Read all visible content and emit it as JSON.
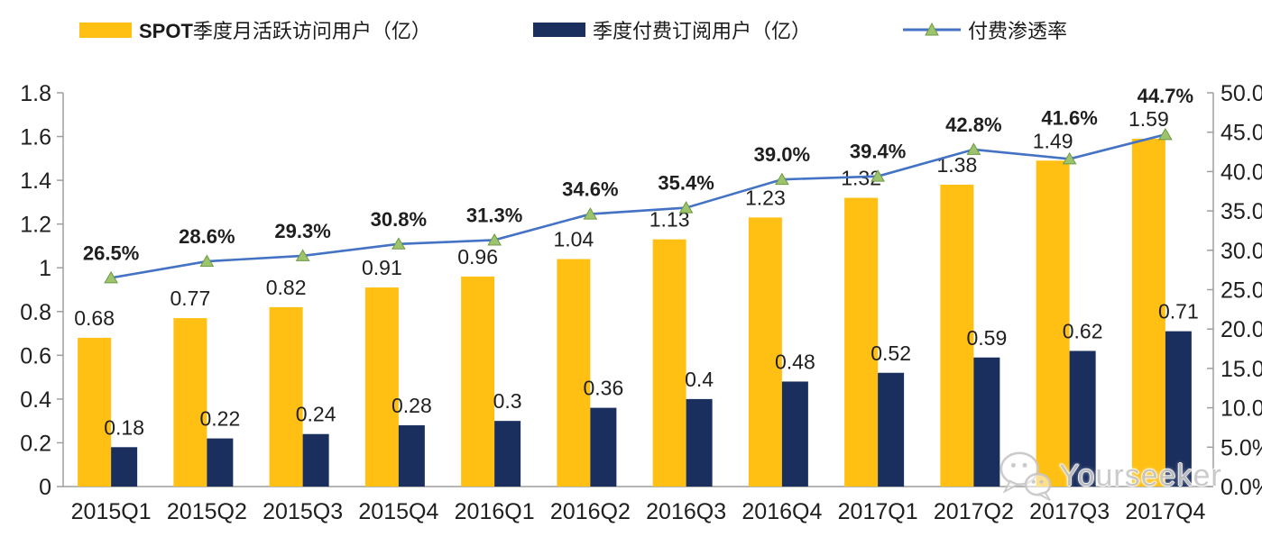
{
  "legend": {
    "items": [
      {
        "prefix": "SPOT",
        "label": "季度月活跃访问用户（亿）",
        "color": "#FFC013"
      },
      {
        "prefix": "",
        "label": "季度付费订阅用户（亿）",
        "color": "#1B2F5E"
      },
      {
        "prefix": "",
        "label": "付费渗透率",
        "color": "#4472C4",
        "marker_color": "#9DC36C"
      }
    ]
  },
  "watermark": {
    "text": "Yourseeker"
  },
  "chart_data": {
    "type": "bar",
    "subtype": "combo bar+line, dual axis",
    "categories": [
      "2015Q1",
      "2015Q2",
      "2015Q3",
      "2015Q4",
      "2016Q1",
      "2016Q2",
      "2016Q3",
      "2016Q4",
      "2017Q1",
      "2017Q2",
      "2017Q3",
      "2017Q4"
    ],
    "series": [
      {
        "name": "SPOT季度月活跃访问用户（亿）",
        "type": "bar",
        "axis": "left",
        "color": "#FFC013",
        "values": [
          0.68,
          0.77,
          0.82,
          0.91,
          0.96,
          1.04,
          1.13,
          1.23,
          1.32,
          1.38,
          1.49,
          1.59
        ]
      },
      {
        "name": "季度付费订阅用户（亿）",
        "type": "bar",
        "axis": "left",
        "color": "#1B2F5E",
        "values": [
          0.18,
          0.22,
          0.24,
          0.28,
          0.3,
          0.36,
          0.4,
          0.48,
          0.52,
          0.59,
          0.62,
          0.71
        ]
      },
      {
        "name": "付费渗透率",
        "type": "line",
        "axis": "right",
        "color": "#4472C4",
        "marker": "triangle",
        "marker_color": "#9DC36C",
        "marker_edge": "#6E9A47",
        "values": [
          26.5,
          28.6,
          29.3,
          30.8,
          31.3,
          34.6,
          35.4,
          39.0,
          39.4,
          42.8,
          41.6,
          44.7
        ],
        "labels": [
          "26.5%",
          "28.6%",
          "29.3%",
          "30.8%",
          "31.3%",
          "34.6%",
          "35.4%",
          "39.0%",
          "39.4%",
          "42.8%",
          "41.6%",
          "44.7%"
        ]
      }
    ],
    "left_axis": {
      "min": 0,
      "max": 1.8,
      "step": 0.2,
      "tick_labels": [
        "0",
        "0.2",
        "0.4",
        "0.6",
        "0.8",
        "1",
        "1.2",
        "1.4",
        "1.6",
        "1.8"
      ]
    },
    "right_axis": {
      "min": 0,
      "max": 50,
      "step": 5,
      "tick_labels": [
        "0.0%",
        "5.0%",
        "10.0%",
        "15.0%",
        "20.0%",
        "25.0%",
        "30.0%",
        "35.0%",
        "40.0%",
        "45.0%",
        "50.0%"
      ]
    },
    "grid": false,
    "legend_position": "top",
    "title": ""
  }
}
